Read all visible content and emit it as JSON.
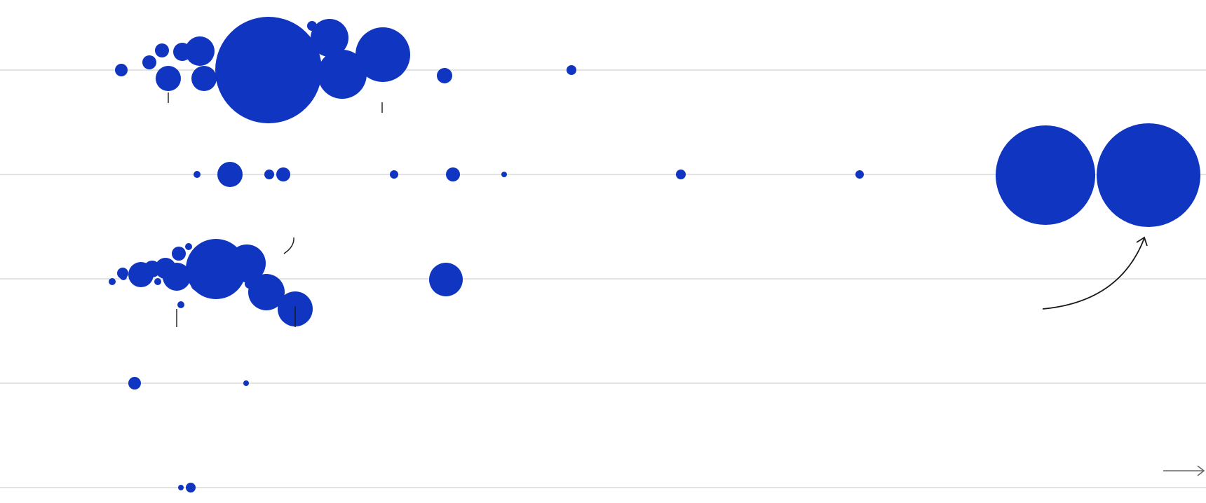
{
  "chart_data": {
    "type": "scatter",
    "title": "",
    "xlabel": "",
    "ylabel": "",
    "grid": true,
    "x_axis_arrow": true,
    "color": "#0f35c1",
    "rows": [
      {
        "bubbles": [
          {
            "x": 173,
            "r": 9
          },
          {
            "x": 213,
            "r": 10
          },
          {
            "x": 231,
            "r": 10
          },
          {
            "x": 240,
            "r": 18
          },
          {
            "x": 260,
            "r": 13
          },
          {
            "x": 285,
            "r": 21
          },
          {
            "x": 291,
            "r": 18
          },
          {
            "x": 383,
            "r": 76
          },
          {
            "x": 445,
            "r": 7
          },
          {
            "x": 466,
            "r": 4
          },
          {
            "x": 470,
            "r": 27
          },
          {
            "x": 483,
            "r": 21
          },
          {
            "x": 488,
            "r": 35
          },
          {
            "x": 546,
            "r": 39
          },
          {
            "x": 634,
            "r": 11
          },
          {
            "x": 815,
            "r": 7
          }
        ]
      },
      {
        "bubbles": [
          {
            "x": 281,
            "r": 5
          },
          {
            "x": 328,
            "r": 18
          },
          {
            "x": 384,
            "r": 7
          },
          {
            "x": 404,
            "r": 10
          },
          {
            "x": 562,
            "r": 6
          },
          {
            "x": 646,
            "r": 10
          },
          {
            "x": 719,
            "r": 4
          },
          {
            "x": 971,
            "r": 7
          },
          {
            "x": 1226,
            "r": 6
          },
          {
            "x": 1491,
            "r": 71
          },
          {
            "x": 1638,
            "r": 74
          }
        ]
      },
      {
        "bubbles": [
          {
            "x": 160,
            "r": 5
          },
          {
            "x": 175,
            "r": 8
          },
          {
            "x": 176,
            "r": 5
          },
          {
            "x": 201,
            "r": 18
          },
          {
            "x": 217,
            "r": 12
          },
          {
            "x": 217,
            "r": 5
          },
          {
            "x": 225,
            "r": 5
          },
          {
            "x": 236,
            "r": 15
          },
          {
            "x": 252,
            "r": 20
          },
          {
            "x": 255,
            "r": 10
          },
          {
            "x": 258,
            "r": 5
          },
          {
            "x": 269,
            "r": 5
          },
          {
            "x": 283,
            "r": 11
          },
          {
            "x": 308,
            "r": 43
          },
          {
            "x": 352,
            "r": 27
          },
          {
            "x": 356,
            "r": 7
          },
          {
            "x": 380,
            "r": 26
          },
          {
            "x": 421,
            "r": 25
          },
          {
            "x": 636,
            "r": 24
          }
        ]
      },
      {
        "bubbles": [
          {
            "x": 192,
            "r": 9
          },
          {
            "x": 351,
            "r": 4
          }
        ]
      },
      {
        "bubbles": [
          {
            "x": 258,
            "r": 4
          },
          {
            "x": 272,
            "r": 7
          }
        ]
      }
    ]
  }
}
